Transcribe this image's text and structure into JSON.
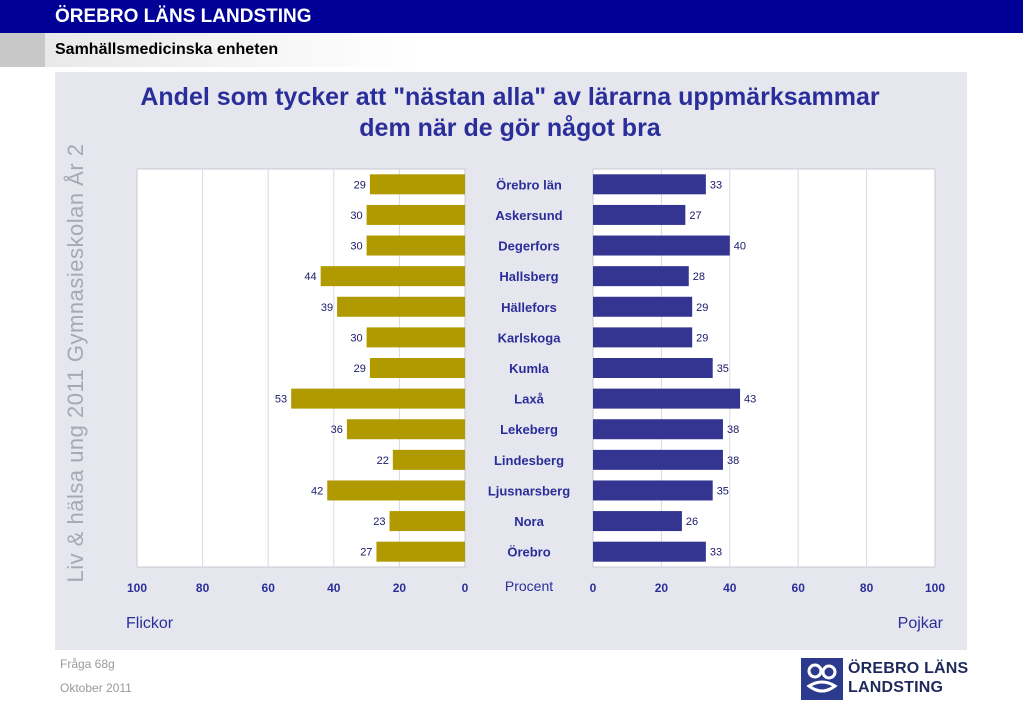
{
  "header": {
    "title": "ÖREBRO LÄNS LANDSTING",
    "subtitle": "Samhällsmedicinska enheten"
  },
  "side_label": "Liv & hälsa ung 2011 Gymnasieskolan År 2",
  "footer": {
    "question": "Fråga 68g",
    "date": "Oktober 2011"
  },
  "logo": {
    "line1": "ÖREBRO LÄNS",
    "line2": "LANDSTING"
  },
  "colors": {
    "girls": "#b09a00",
    "boys": "#343491",
    "title": "#2a2e9a",
    "label": "#2a2e9a"
  },
  "chart_data": {
    "type": "bar",
    "title": "Andel som tycker att \"nästan alla\" av lärarna uppmärksammar dem när de gör något bra",
    "title_lines": [
      "Andel som tycker att \"nästan alla\" av lärarna uppmärksammar",
      "dem när de gör något bra"
    ],
    "categories": [
      "Örebro län",
      "Askersund",
      "Degerfors",
      "Hallsberg",
      "Hällefors",
      "Karlskoga",
      "Kumla",
      "Laxå",
      "Lekeberg",
      "Lindesberg",
      "Ljusnarsberg",
      "Nora",
      "Örebro"
    ],
    "series": [
      {
        "name": "Flickor",
        "values": [
          29,
          30,
          30,
          44,
          39,
          30,
          29,
          53,
          36,
          22,
          42,
          23,
          27
        ]
      },
      {
        "name": "Pojkar",
        "values": [
          33,
          27,
          40,
          28,
          29,
          29,
          35,
          43,
          38,
          38,
          35,
          26,
          33
        ]
      }
    ],
    "xlabel": "Procent",
    "left_axis_ticks": [
      100,
      80,
      60,
      40,
      20,
      0
    ],
    "right_axis_ticks": [
      0,
      20,
      40,
      60,
      80,
      100
    ],
    "xlim": [
      0,
      100
    ],
    "grid": true
  }
}
